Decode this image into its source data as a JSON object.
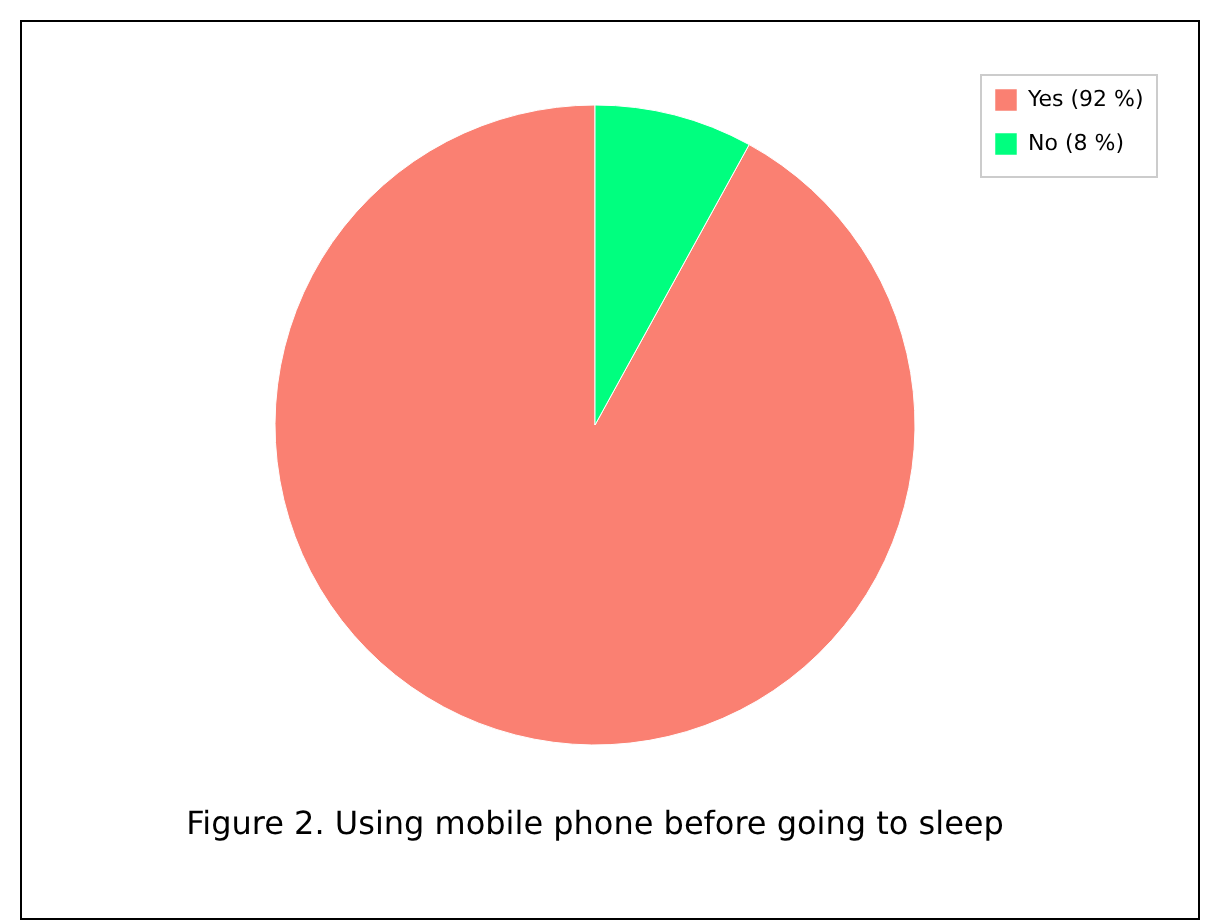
{
  "chart_data": {
    "type": "pie",
    "categories": [
      "Yes (92 %)",
      "No (8 %)"
    ],
    "values": [
      92,
      8
    ],
    "colors": [
      "#fa8072",
      "#00ff7f"
    ],
    "legend": "top right",
    "annotations": [
      "Figure 2. Using mobile phone before going to sleep"
    ]
  }
}
